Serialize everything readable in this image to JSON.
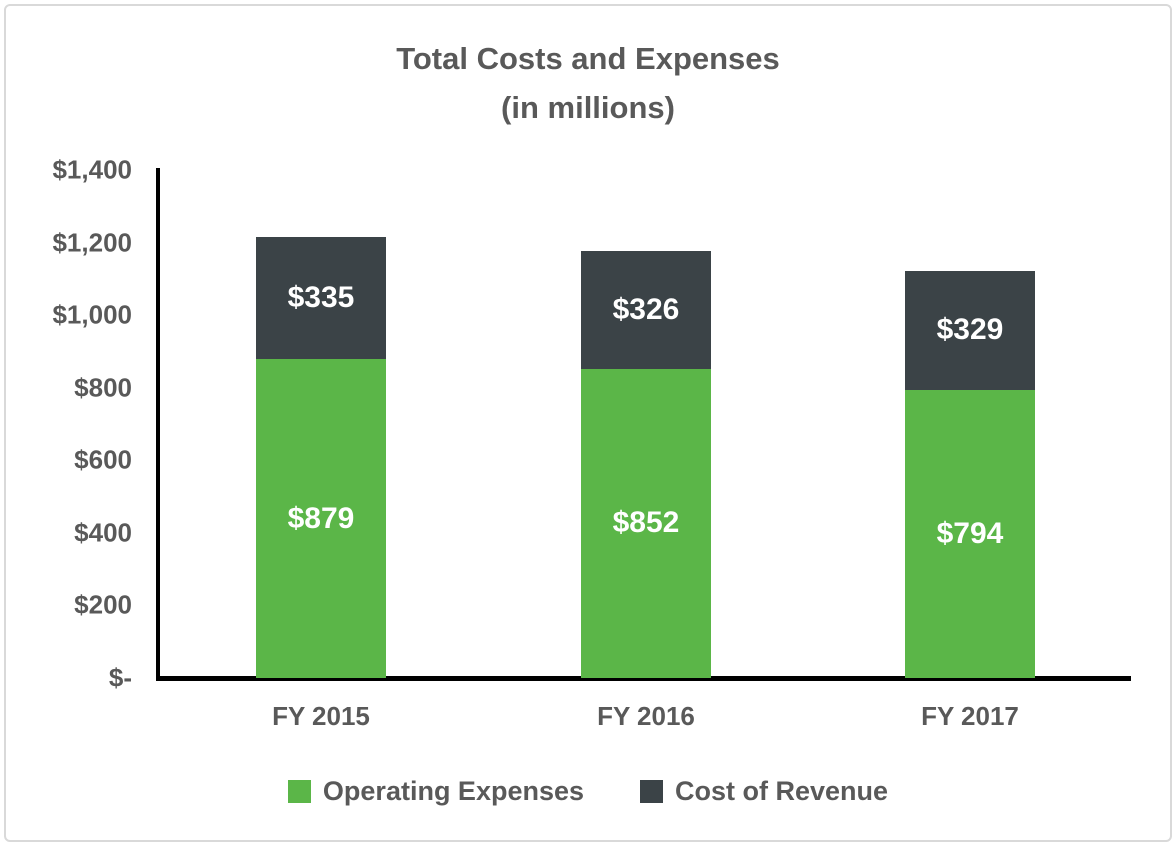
{
  "title": {
    "line1": "Total Costs and Expenses",
    "line2": "(in millions)"
  },
  "chart_data": {
    "type": "bar",
    "stacked": true,
    "title": "Total Costs and Expenses (in millions)",
    "categories": [
      "FY 2015",
      "FY 2016",
      "FY 2017"
    ],
    "series": [
      {
        "name": "Operating Expenses",
        "color": "#5BB648",
        "values": [
          879,
          852,
          794
        ],
        "labels": [
          "$879",
          "$852",
          "$794"
        ]
      },
      {
        "name": "Cost of Revenue",
        "color": "#3B4347",
        "values": [
          335,
          326,
          329
        ],
        "labels": [
          "$335",
          "$326",
          "$329"
        ]
      }
    ],
    "totals": [
      1214,
      1178,
      1123
    ],
    "xlabel": "",
    "ylabel": "",
    "ylim": [
      0,
      1400
    ],
    "yticks": [
      {
        "value": 0,
        "label": "$-"
      },
      {
        "value": 200,
        "label": "$200"
      },
      {
        "value": 400,
        "label": "$400"
      },
      {
        "value": 600,
        "label": "$600"
      },
      {
        "value": 800,
        "label": "$800"
      },
      {
        "value": 1000,
        "label": "$1,000"
      },
      {
        "value": 1200,
        "label": "$1,200"
      },
      {
        "value": 1400,
        "label": "$1,400"
      }
    ],
    "grid": false,
    "legend_position": "bottom",
    "data_label_color": "#ffffff"
  },
  "colors": {
    "axis": "#000000",
    "text": "#595959",
    "frame_border": "#d9d9d9",
    "background": "#ffffff"
  }
}
